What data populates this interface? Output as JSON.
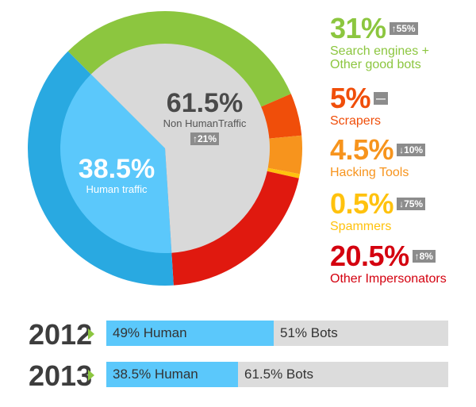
{
  "chart_data": [
    {
      "type": "pie",
      "series": [
        {
          "slices": [
            {
              "label": "Search engines + Other good bots",
              "value": 31,
              "color": "#8cc63f"
            },
            {
              "label": "Scrapers",
              "value": 5,
              "color": "#f04e0a"
            },
            {
              "label": "Hacking Tools",
              "value": 4.5,
              "color": "#f7941d"
            },
            {
              "label": "Spammers",
              "value": 0.5,
              "color": "#ffc20e"
            },
            {
              "label": "Other Impersonators",
              "value": 20.5,
              "color": "#e0190f"
            },
            {
              "label": "Human traffic",
              "value": 38.5,
              "color": "#29a9e1"
            }
          ]
        },
        {
          "slices": [
            {
              "label": "Non HumanTraffic",
              "value": 61.5,
              "color": "#d9d9d9"
            },
            {
              "label": "Human traffic",
              "value": 38.5,
              "color": "#5bc8fb"
            }
          ]
        }
      ],
      "center_labels": {
        "non_human": {
          "pct": "61.5%",
          "label": "Non HumanTraffic",
          "change": "↑21%"
        },
        "human": {
          "pct": "38.5%",
          "label": "Human traffic"
        }
      }
    },
    {
      "type": "bar",
      "categories": [
        "2012",
        "2013"
      ],
      "series": [
        {
          "name": "Human",
          "values": [
            49,
            38.5
          ]
        },
        {
          "name": "Bots",
          "values": [
            51,
            61.5
          ]
        }
      ],
      "bar_labels": [
        {
          "human": "49% Human",
          "bots": "51% Bots"
        },
        {
          "human": "38.5% Human",
          "bots": "61.5% Bots"
        }
      ]
    }
  ],
  "legend": [
    {
      "pct": "31%",
      "change": "↑55%",
      "label": "Search engines +\nOther good bots",
      "color": "#8cc63f"
    },
    {
      "pct": "5%",
      "change": "—",
      "label": "Scrapers",
      "color": "#f04e0a"
    },
    {
      "pct": "4.5%",
      "change": "↓10%",
      "label": "Hacking Tools",
      "color": "#f7941d"
    },
    {
      "pct": "0.5%",
      "change": "↓75%",
      "label": "Spammers",
      "color": "#ffc20e"
    },
    {
      "pct": "20.5%",
      "change": "↑8%",
      "label": "Other Impersonators",
      "color": "#d4000f"
    }
  ],
  "colors": {
    "human_outer": "#29a9e1",
    "human_inner": "#5bc8fb",
    "bots_inner": "#d9d9d9",
    "badge": "#8c8c8c",
    "bar_track": "#dcdcdc",
    "arrow": "#8cc63f"
  }
}
